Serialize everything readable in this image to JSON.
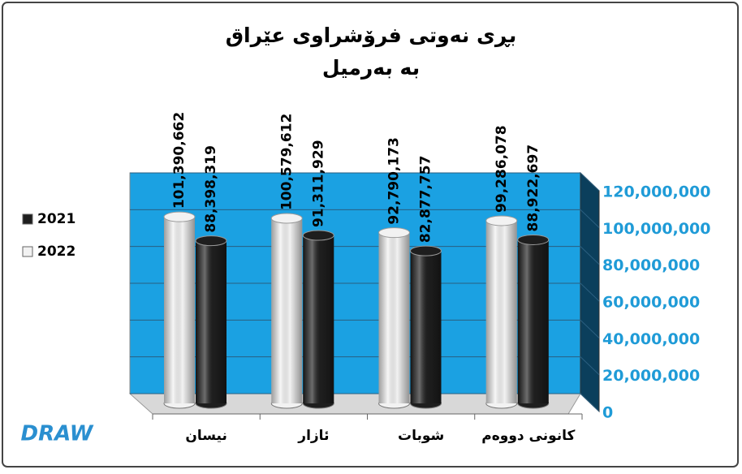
{
  "chart_data": {
    "type": "bar",
    "title": "بڕی نەوتی فرۆشراوی عێراق",
    "subtitle": "بە بەرمیل",
    "categories": [
      "نیسان",
      "ئازار",
      "شوبات",
      "کانونی دووەم"
    ],
    "series": [
      {
        "name": "2022",
        "color": "#f2f2f2",
        "values": [
          101390662,
          100579612,
          92790173,
          99286078
        ],
        "value_labels": [
          "101,390,662",
          "100,579,612",
          "92,790,173",
          "99,286,078"
        ]
      },
      {
        "name": "2021",
        "color": "#1e1e1e",
        "values": [
          88398319,
          91311929,
          82877757,
          88922697
        ],
        "value_labels": [
          "88,398,319",
          "91,311,929",
          "82,877,757",
          "88,922,697"
        ]
      }
    ],
    "ylim": [
      0,
      120000000
    ],
    "yticks": [
      {
        "value": 0,
        "label": "0"
      },
      {
        "value": 20000000,
        "label": "20,000,000"
      },
      {
        "value": 40000000,
        "label": "40,000,000"
      },
      {
        "value": 60000000,
        "label": "60,000,000"
      },
      {
        "value": 80000000,
        "label": "80,000,000"
      },
      {
        "value": 100000000,
        "label": "100,000,000"
      },
      {
        "value": 120000000,
        "label": "120,000,000"
      }
    ],
    "grid": true,
    "legend": "left",
    "wall_color": "#1ba1e2",
    "tick_color": "#1f9bd7",
    "logo": "DRAW"
  }
}
